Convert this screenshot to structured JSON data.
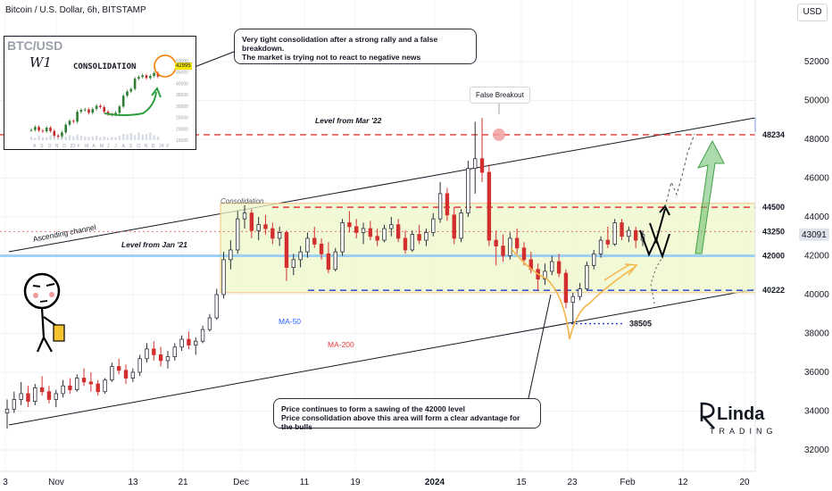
{
  "header": {
    "title": "Bitcoin / U.S. Dollar, 6h, BITSTAMP",
    "currency": "USD"
  },
  "chart_data": {
    "type": "candlestick",
    "y_ticks": [
      32000,
      34000,
      36000,
      38000,
      40000,
      42000,
      44000,
      46000,
      48000,
      50000,
      52000
    ],
    "x_ticks": [
      "3",
      "Nov",
      "13",
      "21",
      "Dec",
      "11",
      "19",
      "2024",
      "15",
      "23",
      "Feb",
      "12",
      "20"
    ],
    "ylim": [
      30800,
      53900
    ],
    "current_price": "43091",
    "levels": [
      {
        "name": "Level from Mar '22",
        "value": 48234,
        "label": "48234",
        "color": "#e53935",
        "style": "dashed"
      },
      {
        "name": "",
        "value": 44500,
        "label": "44500",
        "color": "#e53935",
        "style": "dashed"
      },
      {
        "name": "",
        "value": 43250,
        "label": "43250",
        "color": "#e57373",
        "style": "dotted"
      },
      {
        "name": "Level from Jan '21",
        "value": 42000,
        "label": "42000",
        "color": "#90caf9",
        "style": "solid"
      },
      {
        "name": "",
        "value": 40222,
        "label": "40222",
        "color": "#1e3ad6",
        "style": "dashed"
      },
      {
        "name": "",
        "value": 38505,
        "label": "38505",
        "color": "#1e3ad6",
        "style": "dotted"
      }
    ],
    "annotations": {
      "false_breakout": "False Breakout",
      "consolidation": "Consolidation",
      "ascending_channel": "Ascending channel",
      "ma50": "MA-50",
      "ma200": "MA-200"
    },
    "candles": [
      [
        33900,
        34600,
        33100,
        34100
      ],
      [
        34100,
        35000,
        33900,
        34600
      ],
      [
        34600,
        35500,
        34300,
        34900
      ],
      [
        34900,
        35300,
        34200,
        34500
      ],
      [
        34500,
        35400,
        34300,
        35200
      ],
      [
        35200,
        35800,
        34800,
        35000
      ],
      [
        35000,
        35300,
        34400,
        34600
      ],
      [
        34600,
        35100,
        34200,
        34900
      ],
      [
        34900,
        35600,
        34700,
        35300
      ],
      [
        35300,
        35700,
        34900,
        35100
      ],
      [
        35100,
        35900,
        35000,
        35700
      ],
      [
        35700,
        36200,
        35300,
        35500
      ],
      [
        35500,
        36000,
        35000,
        35400
      ],
      [
        35400,
        35600,
        34800,
        35000
      ],
      [
        35000,
        35700,
        34900,
        35600
      ],
      [
        35600,
        36500,
        35500,
        36300
      ],
      [
        36300,
        36700,
        35900,
        36100
      ],
      [
        36100,
        36400,
        35400,
        35700
      ],
      [
        35700,
        36200,
        35500,
        36000
      ],
      [
        36000,
        36900,
        35800,
        36700
      ],
      [
        36700,
        37500,
        36500,
        37200
      ],
      [
        37200,
        37600,
        36600,
        36900
      ],
      [
        36900,
        37300,
        36300,
        36600
      ],
      [
        36600,
        37100,
        36200,
        36800
      ],
      [
        36800,
        37500,
        36600,
        37300
      ],
      [
        37300,
        37900,
        37100,
        37700
      ],
      [
        37700,
        38100,
        37200,
        37400
      ],
      [
        37400,
        37800,
        36900,
        37600
      ],
      [
        37600,
        38400,
        37500,
        38200
      ],
      [
        38200,
        39000,
        38100,
        38800
      ],
      [
        38800,
        40300,
        38700,
        40000
      ],
      [
        40000,
        42200,
        39800,
        41800
      ],
      [
        41800,
        42800,
        41300,
        42300
      ],
      [
        42300,
        44300,
        42100,
        43900
      ],
      [
        43900,
        44600,
        43400,
        44200
      ],
      [
        44200,
        44400,
        42900,
        43300
      ],
      [
        43300,
        44000,
        42800,
        43600
      ],
      [
        43600,
        44100,
        43100,
        43400
      ],
      [
        43400,
        43700,
        42600,
        42900
      ],
      [
        42900,
        43500,
        42500,
        43200
      ],
      [
        43200,
        43300,
        40700,
        41400
      ],
      [
        41400,
        42100,
        41000,
        41800
      ],
      [
        41800,
        42500,
        41400,
        42200
      ],
      [
        42200,
        43200,
        41900,
        42900
      ],
      [
        42900,
        43500,
        42400,
        42600
      ],
      [
        42600,
        42900,
        41800,
        42100
      ],
      [
        42100,
        42700,
        41100,
        41300
      ],
      [
        41300,
        42400,
        41200,
        42200
      ],
      [
        42200,
        43900,
        42000,
        43700
      ],
      [
        43700,
        44300,
        43200,
        43500
      ],
      [
        43500,
        43900,
        42900,
        43200
      ],
      [
        43200,
        43700,
        42600,
        43400
      ],
      [
        43400,
        43800,
        42800,
        43000
      ],
      [
        43000,
        43400,
        42500,
        42800
      ],
      [
        42800,
        43600,
        42700,
        43400
      ],
      [
        43400,
        44000,
        43000,
        43600
      ],
      [
        43600,
        43900,
        42700,
        42900
      ],
      [
        42900,
        43300,
        42100,
        42300
      ],
      [
        42300,
        43300,
        42200,
        43100
      ],
      [
        43100,
        43600,
        42600,
        42800
      ],
      [
        42800,
        43400,
        42500,
        43200
      ],
      [
        43200,
        44200,
        43000,
        43900
      ],
      [
        43900,
        45800,
        43700,
        45200
      ],
      [
        45200,
        45500,
        43800,
        44100
      ],
      [
        44100,
        44500,
        42600,
        42900
      ],
      [
        42900,
        44400,
        42700,
        44200
      ],
      [
        44200,
        46900,
        44000,
        46500
      ],
      [
        46500,
        48900,
        45200,
        47000
      ],
      [
        47000,
        49100,
        45800,
        46300
      ],
      [
        46300,
        46700,
        42500,
        42800
      ],
      [
        42800,
        43300,
        41500,
        42500
      ],
      [
        42500,
        43100,
        41700,
        42000
      ],
      [
        42000,
        43200,
        41800,
        42900
      ],
      [
        42900,
        43400,
        42100,
        42400
      ],
      [
        42400,
        42700,
        41500,
        41800
      ],
      [
        41800,
        42200,
        41100,
        41300
      ],
      [
        41300,
        41600,
        40200,
        40800
      ],
      [
        40800,
        41600,
        40500,
        41200
      ],
      [
        41200,
        42000,
        41000,
        41700
      ],
      [
        41700,
        42100,
        40900,
        41100
      ],
      [
        41100,
        41300,
        39300,
        39600
      ],
      [
        39600,
        40100,
        38500,
        39900
      ],
      [
        39900,
        40600,
        39700,
        40300
      ],
      [
        40300,
        41700,
        40200,
        41500
      ],
      [
        41500,
        42300,
        41300,
        42100
      ],
      [
        42100,
        43000,
        41900,
        42800
      ],
      [
        42800,
        43500,
        42400,
        42600
      ],
      [
        42600,
        43900,
        42500,
        43700
      ],
      [
        43700,
        43900,
        42800,
        43000
      ],
      [
        43000,
        43500,
        42700,
        43300
      ],
      [
        43300,
        43500,
        42400,
        42800
      ],
      [
        42800,
        43300,
        42500,
        43091
      ]
    ]
  },
  "callouts": {
    "top": {
      "line1": "Very tight consolidation after a strong rally and a false breakdown.",
      "line2": "The market is trying not to react to negative news"
    },
    "bottom": {
      "line1": "Price continues to form a sawing of the 42000 level",
      "line2": "Price consolidation above this area will form a clear advantage for the bulls"
    }
  },
  "inset": {
    "title": "BTC/USD",
    "timeframe": "W1",
    "label": "CONSOLIDATION",
    "price_tag": "42995",
    "y_ticks": [
      "50000",
      "45000",
      "40000",
      "35000",
      "30000",
      "25000",
      "20000",
      "15000"
    ],
    "x_ticks": [
      "A",
      "S",
      "O",
      "N",
      "D",
      "23",
      "F",
      "M",
      "A",
      "M",
      "J",
      "J",
      "A",
      "S",
      "O",
      "N",
      "D",
      "24",
      "F"
    ],
    "values": [
      19500,
      20800,
      19200,
      18900,
      20500,
      19000,
      17000,
      16700,
      18400,
      21800,
      23500,
      23100,
      27500,
      28300,
      28500,
      27000,
      28700,
      30100,
      29500,
      27500,
      26400,
      26200,
      27000,
      29800,
      34500,
      36400,
      37500,
      42000,
      42800,
      43500,
      42300,
      43200,
      44500,
      42995
    ],
    "volume": [
      6,
      4,
      7,
      5,
      5,
      8,
      14,
      9,
      7,
      6,
      8,
      6,
      9,
      7,
      6,
      5,
      6,
      7,
      5,
      6,
      4,
      5,
      5,
      7,
      10,
      9,
      11,
      8,
      12,
      9,
      10,
      12,
      8,
      6
    ]
  },
  "brand": {
    "name": "Linda",
    "sub": "TRADING"
  }
}
